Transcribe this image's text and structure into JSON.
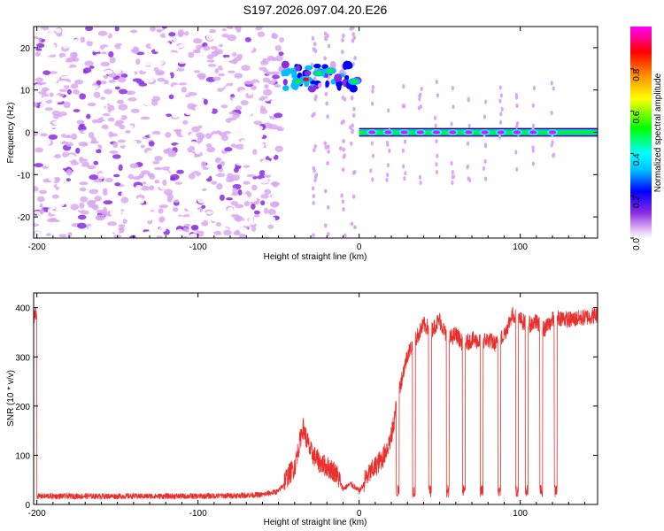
{
  "title": "S197.2026.097.04.20.E26",
  "chart_data": [
    {
      "type": "heatmap",
      "name": "spectrogram",
      "xlabel": "Height of straight line (km)",
      "ylabel": "Frequency (Hz)",
      "xlim": [
        -202,
        148
      ],
      "ylim": [
        -25,
        25
      ],
      "xticks": [
        -200,
        -100,
        0,
        100
      ],
      "yticks": [
        20,
        10,
        0,
        -10,
        -20
      ],
      "colorbar": {
        "label": "Normalized spectral amplitude",
        "range": [
          0,
          1
        ],
        "ticks": [
          0.0,
          0.2,
          0.4,
          0.6,
          0.8
        ],
        "tick_labels": [
          "0.0",
          "0.2",
          "0.4",
          "0.6",
          "0.8"
        ],
        "colors": [
          "#ffffff",
          "#d9a8f0",
          "#8a2be2",
          "#0000ff",
          "#00bfff",
          "#00ffff",
          "#00ff00",
          "#ffff00",
          "#ff8000",
          "#ff0000",
          "#ff00ff"
        ]
      },
      "features": {
        "noise_region_x": [
          -202,
          -48
        ],
        "noise_frequency_range": [
          -25,
          25
        ],
        "noise_amplitude": [
          0.05,
          0.2
        ],
        "transition_cluster": {
          "x": [
            -48,
            0
          ],
          "frequency": [
            10,
            16
          ],
          "peak_amplitude": 0.9
        },
        "carrier_line": {
          "x": [
            0,
            148
          ],
          "frequency": 0,
          "peak_amplitude": 1.0
        },
        "carrier_peaks_x": [
          8,
          18,
          28,
          38,
          48,
          58,
          68,
          78,
          88,
          98,
          108,
          120
        ]
      }
    },
    {
      "type": "line",
      "name": "snr",
      "xlabel": "Height of straight line (km)",
      "ylabel": "SNR (10 * v/v)",
      "xlim": [
        -202,
        148
      ],
      "ylim": [
        0,
        430
      ],
      "xticks": [
        -200,
        -100,
        0,
        100
      ],
      "yticks": [
        0,
        100,
        200,
        300,
        400
      ],
      "color": "#e8302e",
      "series": [
        {
          "x": [
            -200,
            -180,
            -160,
            -140,
            -120,
            -100,
            -80,
            -60,
            -50,
            -40,
            -35,
            -30,
            -25,
            -20,
            -15,
            -10,
            -5,
            0,
            5,
            10,
            15,
            20,
            25,
            30,
            35,
            40,
            45,
            50,
            55,
            60,
            65,
            70,
            75,
            80,
            85,
            90,
            95,
            100,
            105,
            110,
            115,
            120,
            125,
            130,
            140,
            148
          ],
          "y": [
            15,
            15,
            15,
            15,
            15,
            15,
            16,
            18,
            25,
            70,
            150,
            100,
            80,
            70,
            60,
            30,
            40,
            25,
            50,
            70,
            90,
            130,
            230,
            300,
            330,
            360,
            350,
            370,
            330,
            340,
            320,
            330,
            325,
            330,
            320,
            340,
            380,
            370,
            360,
            365,
            350,
            370,
            375,
            370,
            375,
            380
          ]
        }
      ],
      "dropouts_x": [
        24,
        34,
        44,
        55,
        65,
        76,
        87,
        98,
        104,
        113,
        122
      ]
    }
  ]
}
